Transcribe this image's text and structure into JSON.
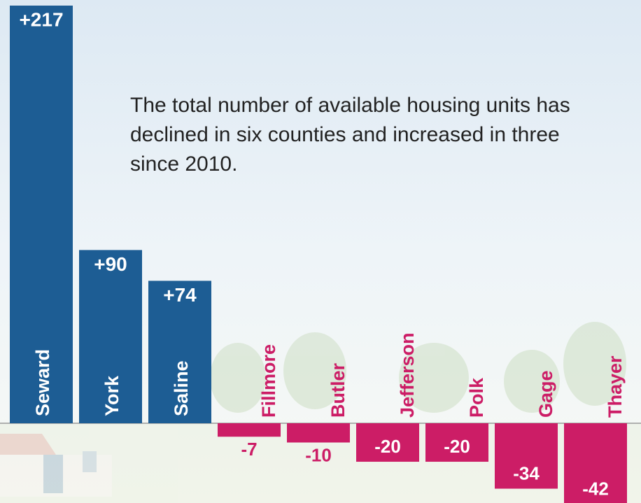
{
  "chart_data": {
    "type": "bar",
    "title": "The total number of available housing units has declined in six counties and increased in three since 2010.",
    "categories": [
      "Seward",
      "York",
      "Saline",
      "Fillmore",
      "Butler",
      "Jefferson",
      "Polk",
      "Gage",
      "Thayer"
    ],
    "values": [
      217,
      90,
      74,
      -7,
      -10,
      -20,
      -20,
      -34,
      -42
    ],
    "value_labels": [
      "+217",
      "+90",
      "+74",
      "-7",
      "-10",
      "-20",
      "-20",
      "-34",
      "-42"
    ],
    "positive_color": "#1d5d94",
    "negative_color": "#cc1d66"
  }
}
